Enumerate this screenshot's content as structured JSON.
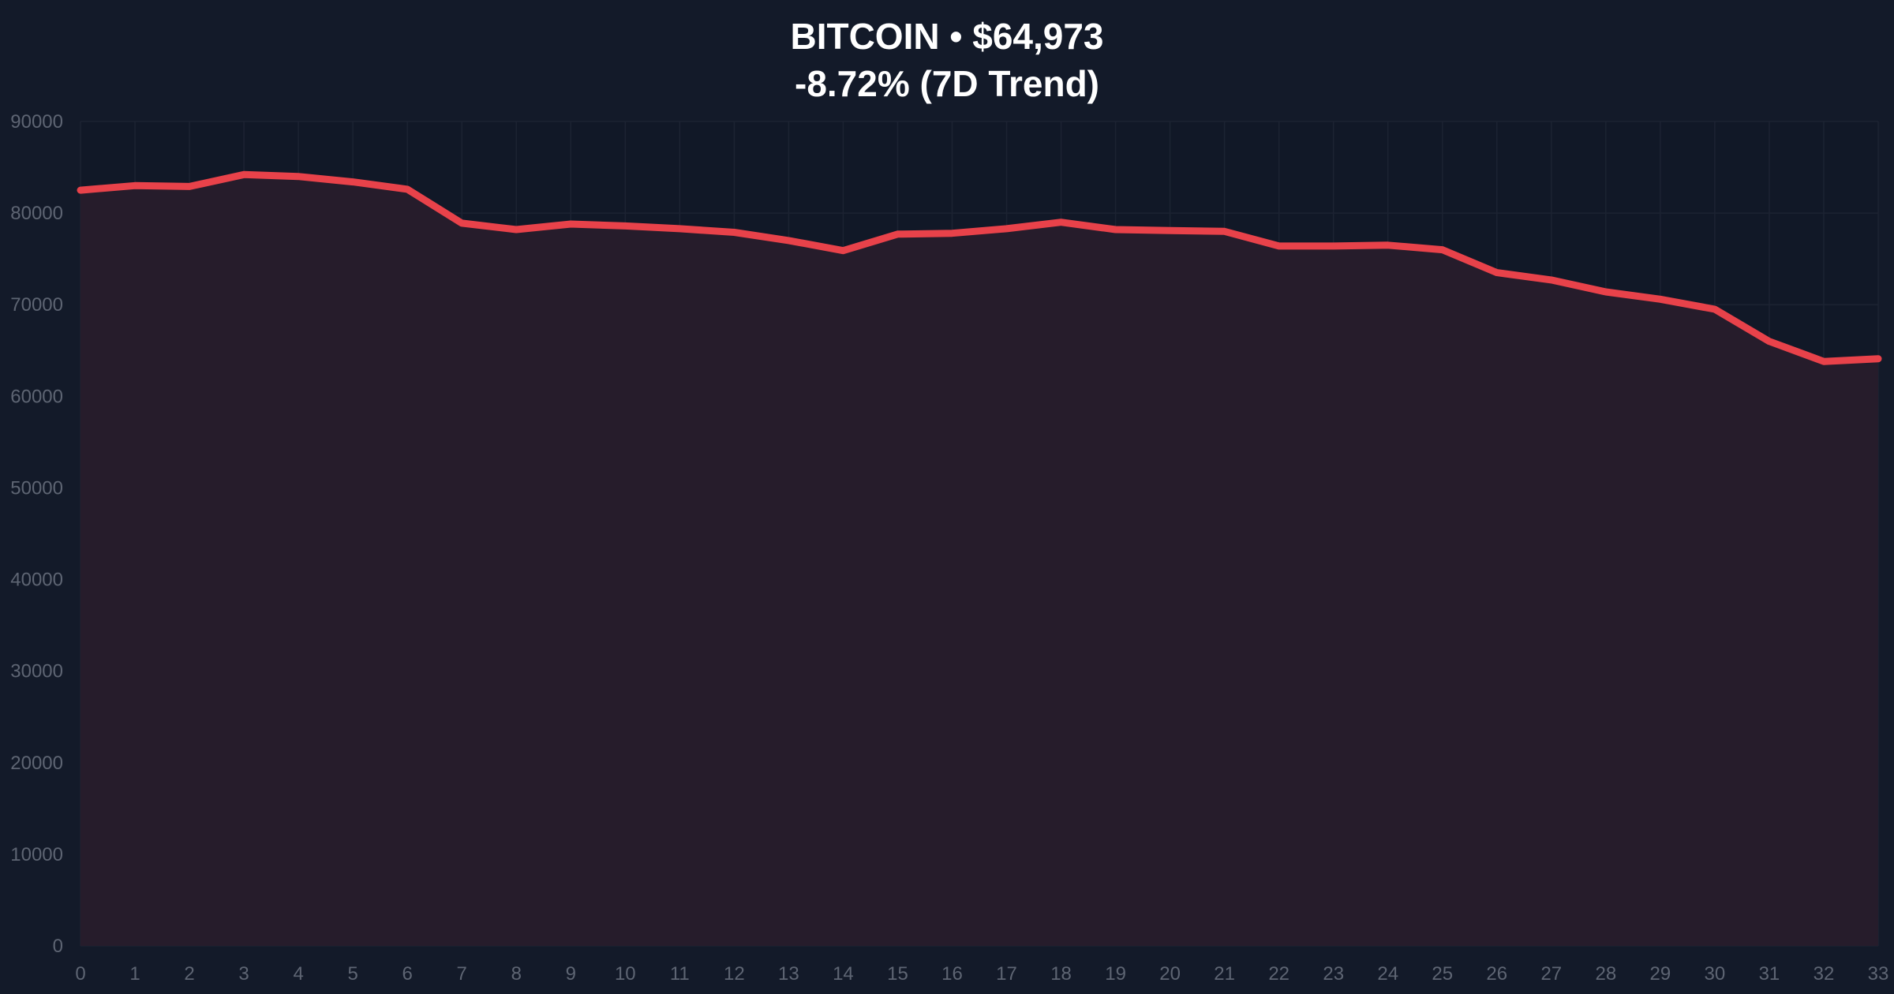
{
  "title_line1": "BITCOIN • $64,973",
  "title_line2": "-8.72% (7D Trend)",
  "colors": {
    "background": "#131a29",
    "plot_background": "#111827",
    "line": "#e8424a",
    "area_fill": "#261c2b",
    "grid": "#1c2332",
    "tick_label": "#5e6573",
    "title": "#ffffff"
  },
  "chart_data": {
    "type": "area",
    "title": "BITCOIN • $64,973",
    "subtitle": "-8.72% (7D Trend)",
    "xlabel": "",
    "ylabel": "",
    "x": [
      0,
      1,
      2,
      3,
      4,
      5,
      6,
      7,
      8,
      9,
      10,
      11,
      12,
      13,
      14,
      15,
      16,
      17,
      18,
      19,
      20,
      21,
      22,
      23,
      24,
      25,
      26,
      27,
      28,
      29,
      30,
      31,
      32,
      33
    ],
    "xlim": [
      0,
      33
    ],
    "ylim": [
      0,
      90000
    ],
    "yticks": [
      0,
      10000,
      20000,
      30000,
      40000,
      50000,
      60000,
      70000,
      80000,
      90000
    ],
    "xticks": [
      0,
      1,
      2,
      3,
      4,
      5,
      6,
      7,
      8,
      9,
      10,
      11,
      12,
      13,
      14,
      15,
      16,
      17,
      18,
      19,
      20,
      21,
      22,
      23,
      24,
      25,
      26,
      27,
      28,
      29,
      30,
      31,
      32,
      33
    ],
    "grid": true,
    "series": [
      {
        "values": [
          82500,
          83000,
          82900,
          84200,
          84000,
          83400,
          82600,
          78900,
          78200,
          78800,
          78600,
          78300,
          77900,
          77000,
          75900,
          77700,
          77800,
          78300,
          79000,
          78200,
          78100,
          78000,
          76400,
          76400,
          76500,
          76000,
          73500,
          72700,
          71400,
          70600,
          69500,
          66000,
          63800,
          64100
        ]
      }
    ]
  }
}
